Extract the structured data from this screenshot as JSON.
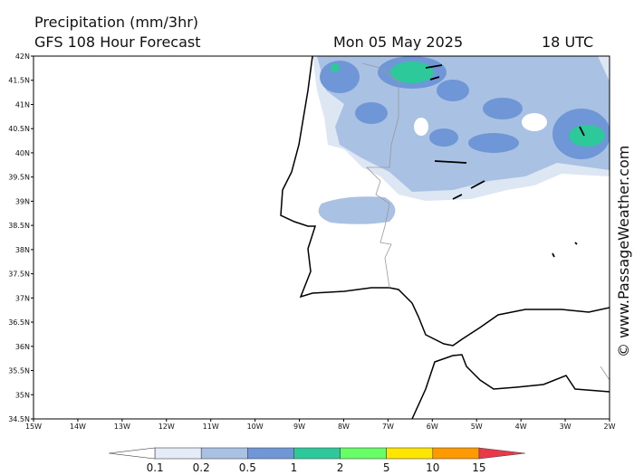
{
  "header": {
    "title": "Precipitation (mm/3hr)",
    "subtitle": "GFS 108 Hour Forecast",
    "date": "Mon 05 May 2025",
    "time": "18 UTC"
  },
  "map": {
    "lat_labels": [
      "42N",
      "41.5N",
      "41N",
      "40.5N",
      "40N",
      "39.5N",
      "39N",
      "38.5N",
      "38N",
      "37.5N",
      "37N",
      "36.5N",
      "36N",
      "35.5N",
      "35N",
      "34.5N"
    ],
    "lon_labels": [
      "15W",
      "14W",
      "13W",
      "12W",
      "11W",
      "10W",
      "9W",
      "8W",
      "7W",
      "6W",
      "5W",
      "4W",
      "3W",
      "2W"
    ],
    "watermark": "© www.PassageWeather.com"
  },
  "colorbar": {
    "labels": [
      "0.1",
      "0.2",
      "0.5",
      "1",
      "2",
      "5",
      "10",
      "15"
    ],
    "colors": [
      "#ffffff",
      "#e4ecf7",
      "#a9c1e3",
      "#6f96d6",
      "#2ec99a",
      "#66ff66",
      "#ffe600",
      "#ff9900",
      "#e8394a"
    ]
  }
}
